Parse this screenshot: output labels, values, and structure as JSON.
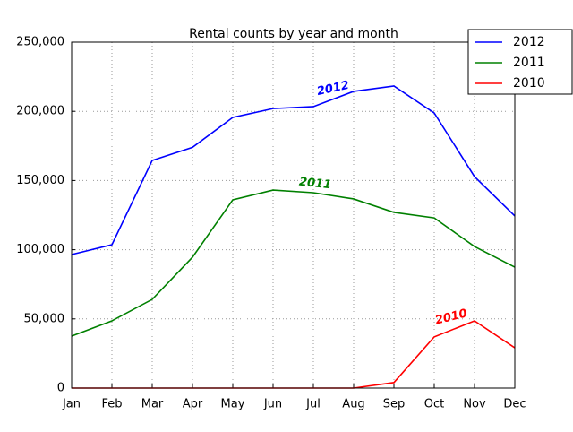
{
  "chart_data": {
    "type": "line",
    "title": "Rental counts by year and month",
    "categories": [
      "Jan",
      "Feb",
      "Mar",
      "Apr",
      "May",
      "Jun",
      "Jul",
      "Aug",
      "Sep",
      "Oct",
      "Nov",
      "Dec"
    ],
    "series": [
      {
        "name": "2012",
        "color": "#0000ff",
        "values": [
          96500,
          103600,
          164500,
          174000,
          195600,
          202000,
          203400,
          214400,
          218300,
          198800,
          152800,
          124400
        ]
      },
      {
        "name": "2011",
        "color": "#008000",
        "values": [
          37600,
          48600,
          64100,
          94600,
          136000,
          143100,
          141200,
          136700,
          127000,
          123000,
          102300,
          87400
        ]
      },
      {
        "name": "2010",
        "color": "#ff0000",
        "values": [
          0,
          0,
          0,
          0,
          0,
          0,
          0,
          0,
          4000,
          37000,
          48600,
          29100
        ]
      }
    ],
    "annotations": [
      "2012",
      "2011",
      "2010"
    ],
    "ylim": [
      0,
      250000
    ],
    "yticks": [
      0,
      {
        "value": 50000,
        "label": "50,000"
      },
      {
        "value": 100000,
        "label": "100,000"
      },
      {
        "value": 150000,
        "label": "150,000"
      },
      {
        "value": 200000,
        "label": "200,000"
      },
      {
        "value": 250000,
        "label": "250,000"
      }
    ],
    "grid": true,
    "legend": "upper right"
  }
}
